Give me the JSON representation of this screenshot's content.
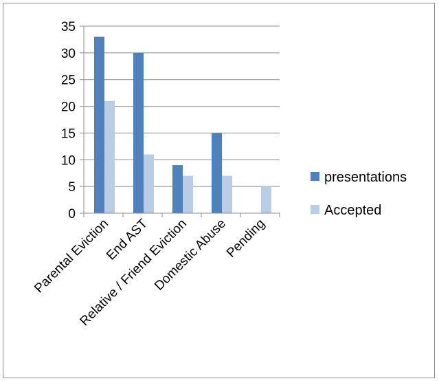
{
  "chart_data": {
    "type": "bar",
    "title": "",
    "xlabel": "",
    "ylabel": "",
    "categories": [
      "Parental Eviction",
      "End AST",
      "Relative / Friend Eviction",
      "Domestic Abuse",
      "Pending"
    ],
    "series": [
      {
        "name": "presentations",
        "values": [
          33,
          30,
          9,
          15,
          0
        ],
        "color": "#4f81bd"
      },
      {
        "name": "Accepted",
        "values": [
          21,
          11,
          7,
          7,
          5
        ],
        "color": "#b9cde5"
      }
    ],
    "ylim": [
      0,
      35
    ],
    "yticks": [
      "0",
      "5",
      "10",
      "15",
      "20",
      "25",
      "30",
      "35"
    ],
    "grid": true,
    "legend_position": "right"
  }
}
